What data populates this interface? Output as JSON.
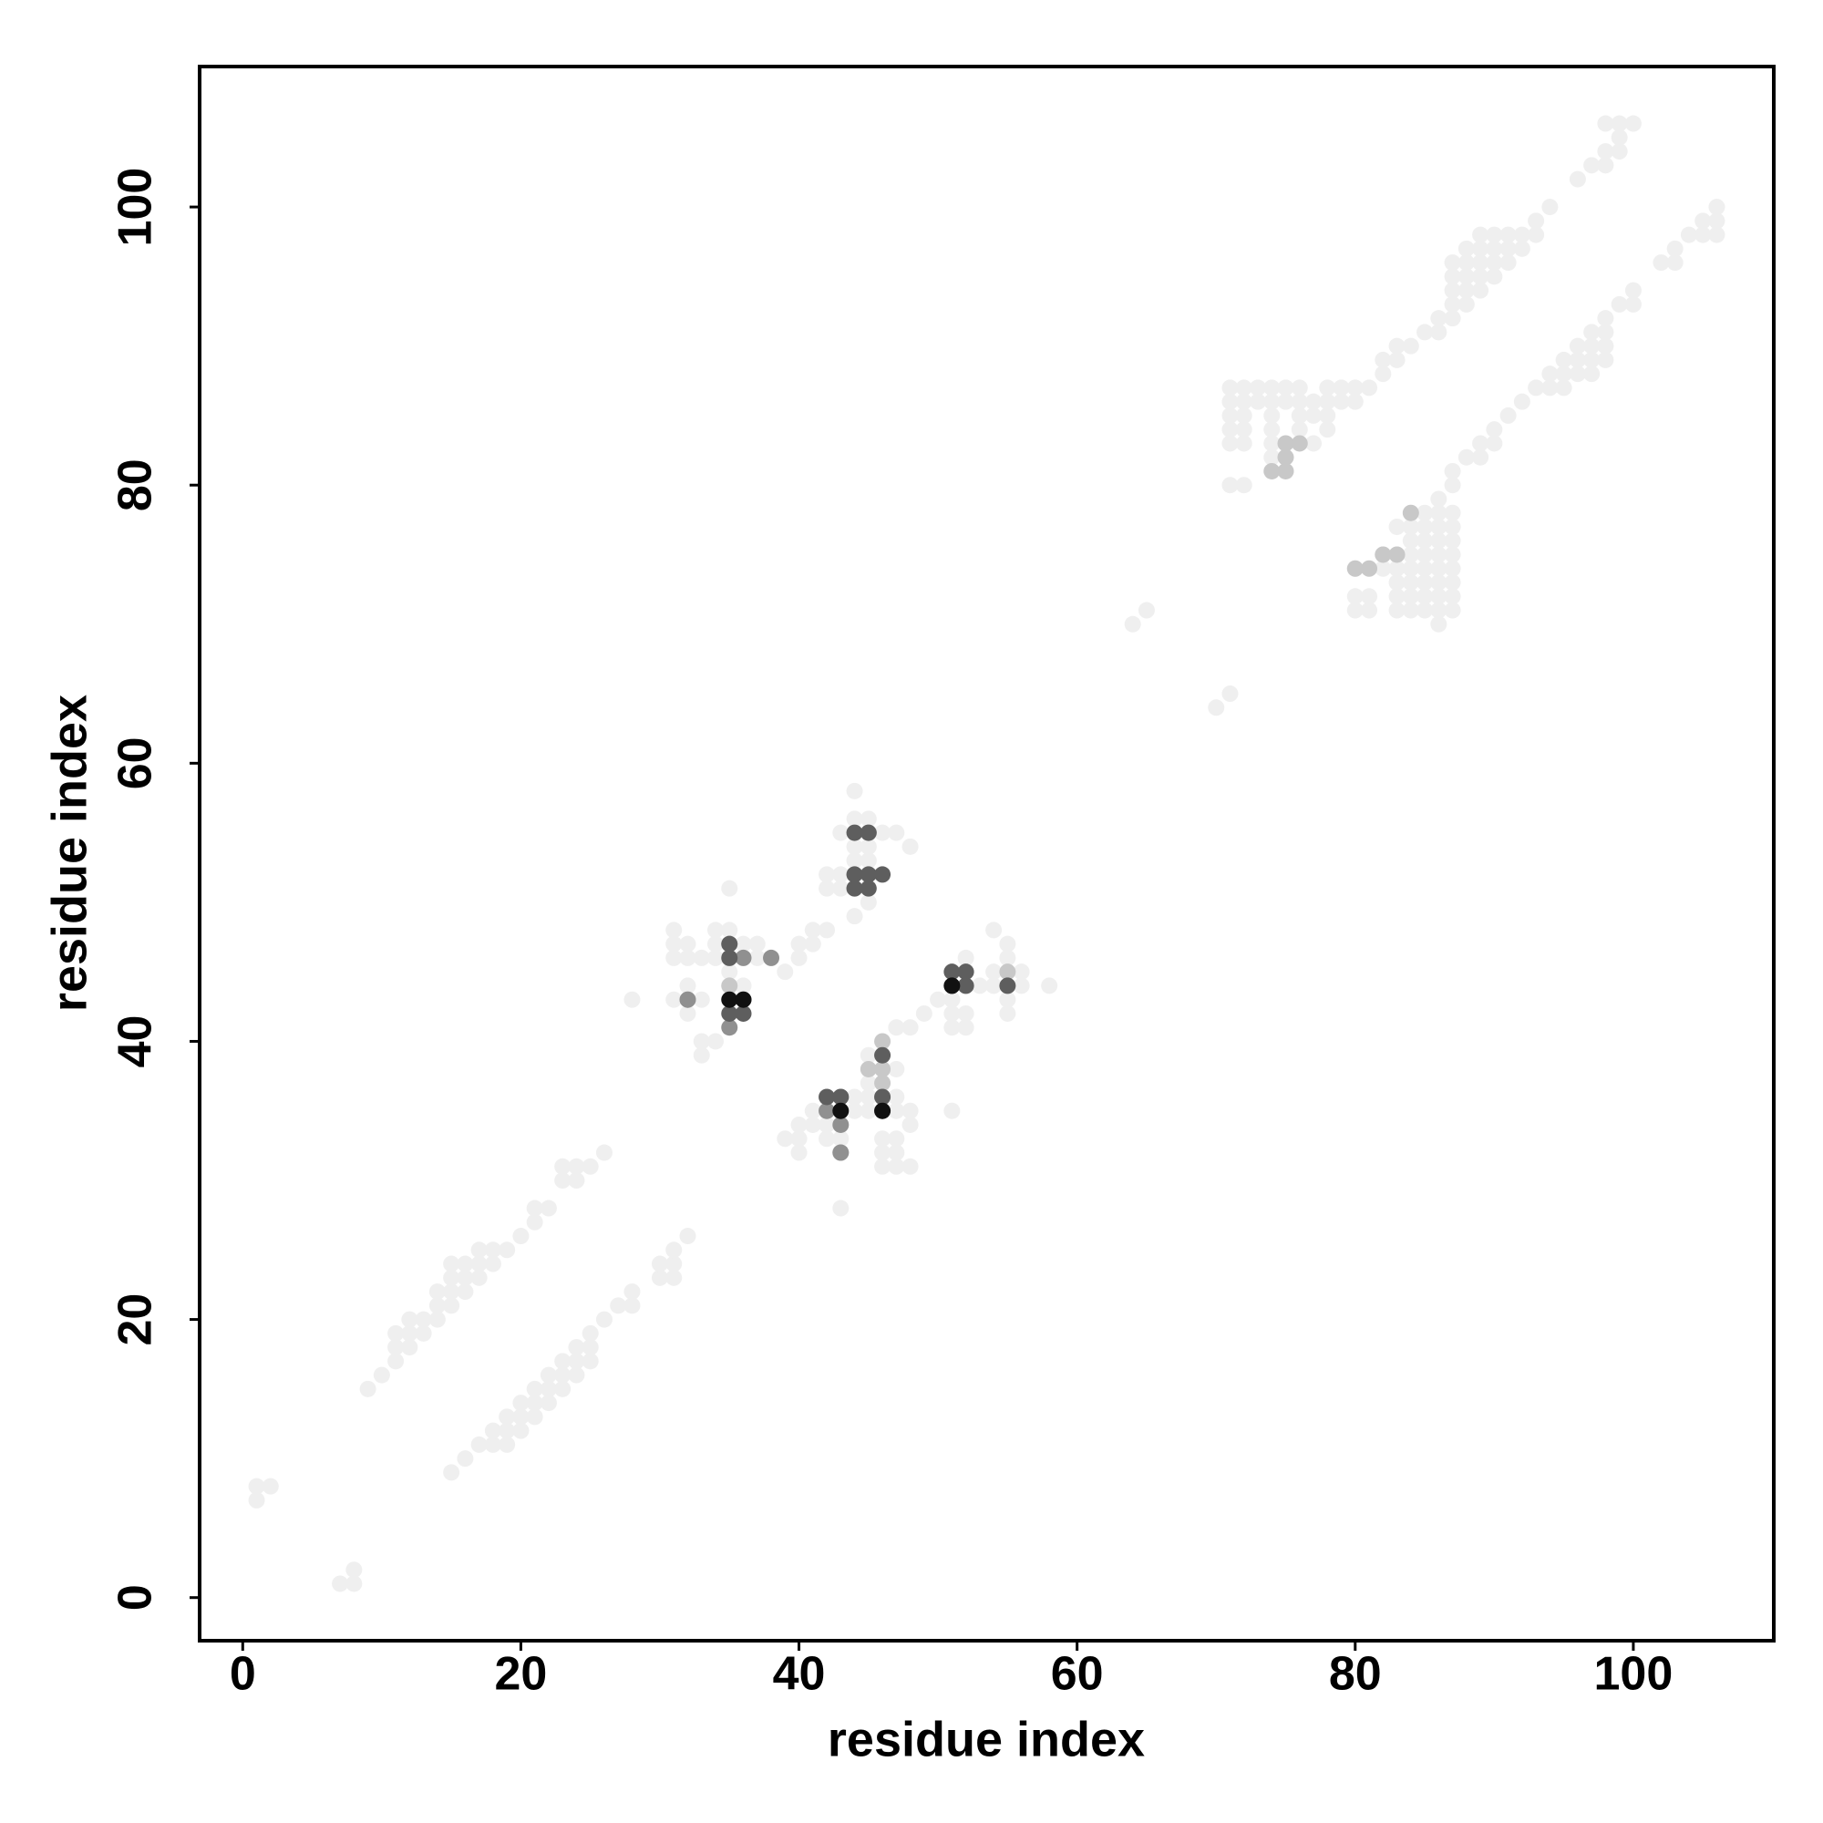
{
  "chart_data": {
    "type": "scatter",
    "x_label": "residue index",
    "y_label": "residue index",
    "xlim": [
      -3.1,
      110.1
    ],
    "ylim": [
      -3.1,
      110.1
    ],
    "xticks": [
      0,
      20,
      40,
      60,
      80,
      100
    ],
    "yticks": [
      0,
      20,
      40,
      60,
      80,
      100
    ],
    "series": [
      {
        "color": "#efefef",
        "x": [
          1,
          1,
          2,
          7,
          8,
          8,
          9,
          10,
          11,
          11,
          11,
          12,
          12,
          12,
          13,
          13,
          14,
          14,
          14,
          15,
          15,
          15,
          15,
          16,
          16,
          16,
          17,
          17,
          17,
          18,
          18,
          19,
          20,
          21,
          21,
          22,
          23,
          23,
          24,
          24,
          25,
          26,
          15,
          16,
          17,
          18,
          18,
          19,
          19,
          19,
          20,
          20,
          20,
          21,
          21,
          21,
          22,
          22,
          22,
          23,
          23,
          23,
          24,
          24,
          24,
          25,
          25,
          25,
          26,
          27,
          28,
          28,
          30,
          30,
          31,
          31,
          31,
          32,
          28,
          31,
          31,
          31,
          31,
          32,
          32,
          32,
          32,
          32,
          33,
          33,
          33,
          33,
          34,
          34,
          34,
          34,
          35,
          35,
          35,
          35,
          36,
          36,
          36,
          36,
          37,
          37,
          38,
          39,
          40,
          40,
          41,
          41,
          42,
          42,
          42,
          43,
          43,
          43,
          44,
          44,
          44,
          44,
          45,
          45,
          45,
          45,
          46,
          47,
          48,
          44,
          39,
          40,
          40,
          40,
          41,
          41,
          42,
          42,
          43,
          43,
          43,
          44,
          44,
          45,
          45,
          45,
          45,
          46,
          46,
          46,
          47,
          47,
          47,
          47,
          47,
          47,
          48,
          48,
          48,
          49,
          50,
          51,
          52,
          52,
          52,
          51,
          51,
          51,
          51,
          48,
          47,
          53,
          54,
          54,
          55,
          55,
          56,
          56,
          58,
          55,
          55,
          54,
          64,
          65,
          70,
          71,
          71,
          71,
          71,
          71,
          71,
          71,
          72,
          72,
          72,
          72,
          72,
          72,
          73,
          73,
          74,
          74,
          74,
          74,
          74,
          74,
          75,
          75,
          76,
          76,
          76,
          76,
          77,
          77,
          77,
          78,
          78,
          78,
          78,
          79,
          79,
          80,
          80,
          81,
          82,
          82,
          83,
          83,
          84,
          85,
          86,
          86,
          87,
          87,
          87,
          87,
          87,
          88,
          88,
          88,
          88,
          88,
          89,
          89,
          89,
          89,
          89,
          90,
          90,
          90,
          90,
          91,
          91,
          91,
          92,
          92,
          93,
          93,
          94,
          96,
          97,
          98,
          98,
          99,
          99,
          98,
          99,
          100,
          80,
          80,
          80,
          81,
          81,
          82,
          82,
          83,
          83,
          83,
          83,
          83,
          83,
          84,
          84,
          84,
          84,
          84,
          84,
          84,
          85,
          85,
          85,
          85,
          85,
          85,
          85,
          85,
          86,
          86,
          86,
          86,
          86,
          86,
          86,
          86,
          86,
          86,
          87,
          87,
          87,
          87,
          87,
          87,
          87,
          87,
          87,
          87,
          88,
          89,
          89,
          90,
          90,
          91,
          92,
          93,
          94,
          94,
          95,
          95,
          95,
          96,
          96,
          96,
          97,
          97,
          97,
          97,
          98,
          98,
          98,
          98,
          99,
          100,
          100,
          102,
          103,
          103,
          104,
          105,
          105,
          106,
          106,
          106
        ],
        "values": [
          7,
          8,
          8,
          1,
          1,
          2,
          15,
          16,
          17,
          18,
          19,
          18,
          19,
          20,
          19,
          20,
          20,
          21,
          22,
          21,
          22,
          23,
          24,
          22,
          23,
          24,
          23,
          24,
          25,
          24,
          25,
          25,
          26,
          27,
          28,
          28,
          30,
          31,
          30,
          31,
          31,
          32,
          9,
          10,
          11,
          11,
          12,
          11,
          12,
          13,
          12,
          13,
          14,
          13,
          14,
          15,
          14,
          15,
          16,
          15,
          16,
          17,
          16,
          17,
          18,
          17,
          18,
          19,
          20,
          21,
          21,
          22,
          23,
          24,
          23,
          24,
          25,
          26,
          43,
          43,
          46,
          47,
          48,
          42,
          43,
          44,
          46,
          47,
          39,
          40,
          43,
          46,
          40,
          46,
          47,
          48,
          44,
          45,
          48,
          51,
          43,
          44,
          46,
          47,
          46,
          47,
          46,
          45,
          47,
          46,
          47,
          48,
          48,
          51,
          52,
          51,
          52,
          55,
          49,
          53,
          54,
          56,
          50,
          53,
          54,
          56,
          55,
          55,
          54,
          58,
          33,
          33,
          34,
          32,
          35,
          34,
          33,
          34,
          28,
          33,
          34,
          35,
          36,
          37,
          36,
          39,
          35,
          31,
          32,
          33,
          31,
          32,
          33,
          35,
          36,
          38,
          31,
          34,
          35,
          42,
          43,
          43,
          41,
          42,
          46,
          41,
          42,
          35,
          43,
          41,
          41,
          44,
          45,
          48,
          46,
          47,
          44,
          45,
          44,
          42,
          43,
          44,
          70,
          71,
          64,
          65,
          80,
          83,
          84,
          85,
          86,
          87,
          80,
          83,
          84,
          85,
          86,
          87,
          86,
          87,
          82,
          83,
          84,
          85,
          86,
          87,
          86,
          87,
          84,
          85,
          86,
          87,
          83,
          85,
          86,
          84,
          85,
          86,
          87,
          86,
          87,
          86,
          87,
          87,
          88,
          89,
          89,
          90,
          90,
          91,
          91,
          92,
          92,
          93,
          94,
          95,
          96,
          93,
          94,
          95,
          96,
          97,
          94,
          95,
          96,
          97,
          98,
          95,
          96,
          97,
          98,
          96,
          97,
          98,
          97,
          98,
          98,
          99,
          100,
          102,
          103,
          103,
          104,
          104,
          105,
          106,
          106,
          106,
          71,
          72,
          74,
          71,
          72,
          74,
          75,
          71,
          72,
          73,
          74,
          75,
          77,
          71,
          72,
          73,
          74,
          75,
          76,
          77,
          71,
          72,
          73,
          74,
          75,
          76,
          77,
          78,
          70,
          71,
          72,
          73,
          74,
          75,
          76,
          77,
          78,
          79,
          71,
          72,
          73,
          74,
          75,
          76,
          77,
          78,
          80,
          81,
          82,
          82,
          83,
          83,
          84,
          85,
          86,
          87,
          87,
          88,
          87,
          88,
          89,
          88,
          89,
          90,
          88,
          89,
          90,
          91,
          89,
          90,
          91,
          92,
          93,
          93,
          94,
          96,
          96,
          97,
          98,
          98,
          99,
          98,
          99,
          100
        ]
      },
      {
        "color": "#c8c8c8",
        "x": [
          32,
          35,
          35,
          45,
          44,
          44,
          45,
          46,
          46,
          46,
          43,
          43,
          46,
          52,
          55,
          75,
          75,
          75,
          74,
          76,
          83,
          82,
          84,
          81,
          80
        ],
        "values": [
          43,
          47,
          44,
          55,
          52,
          51,
          38,
          38,
          37,
          36,
          36,
          32,
          40,
          44,
          45,
          81,
          83,
          82,
          81,
          83,
          75,
          75,
          78,
          74,
          74
        ]
      },
      {
        "color": "#909090",
        "x": [
          32,
          36,
          36,
          38,
          35,
          42,
          43,
          43,
          46
        ],
        "values": [
          43,
          46,
          43,
          46,
          41,
          35,
          34,
          32,
          35
        ]
      },
      {
        "color": "#5e5e5e",
        "x": [
          35,
          35,
          36,
          44,
          45,
          44,
          45,
          46,
          44,
          45,
          42,
          43,
          46,
          46,
          51,
          52,
          51,
          52,
          55,
          35
        ],
        "values": [
          46,
          42,
          42,
          55,
          55,
          52,
          52,
          52,
          51,
          51,
          36,
          36,
          39,
          36,
          45,
          45,
          44,
          44,
          44,
          47
        ]
      },
      {
        "color": "#111111",
        "x": [
          35,
          36,
          43,
          46,
          51
        ],
        "values": [
          43,
          43,
          35,
          35,
          44
        ]
      }
    ]
  }
}
